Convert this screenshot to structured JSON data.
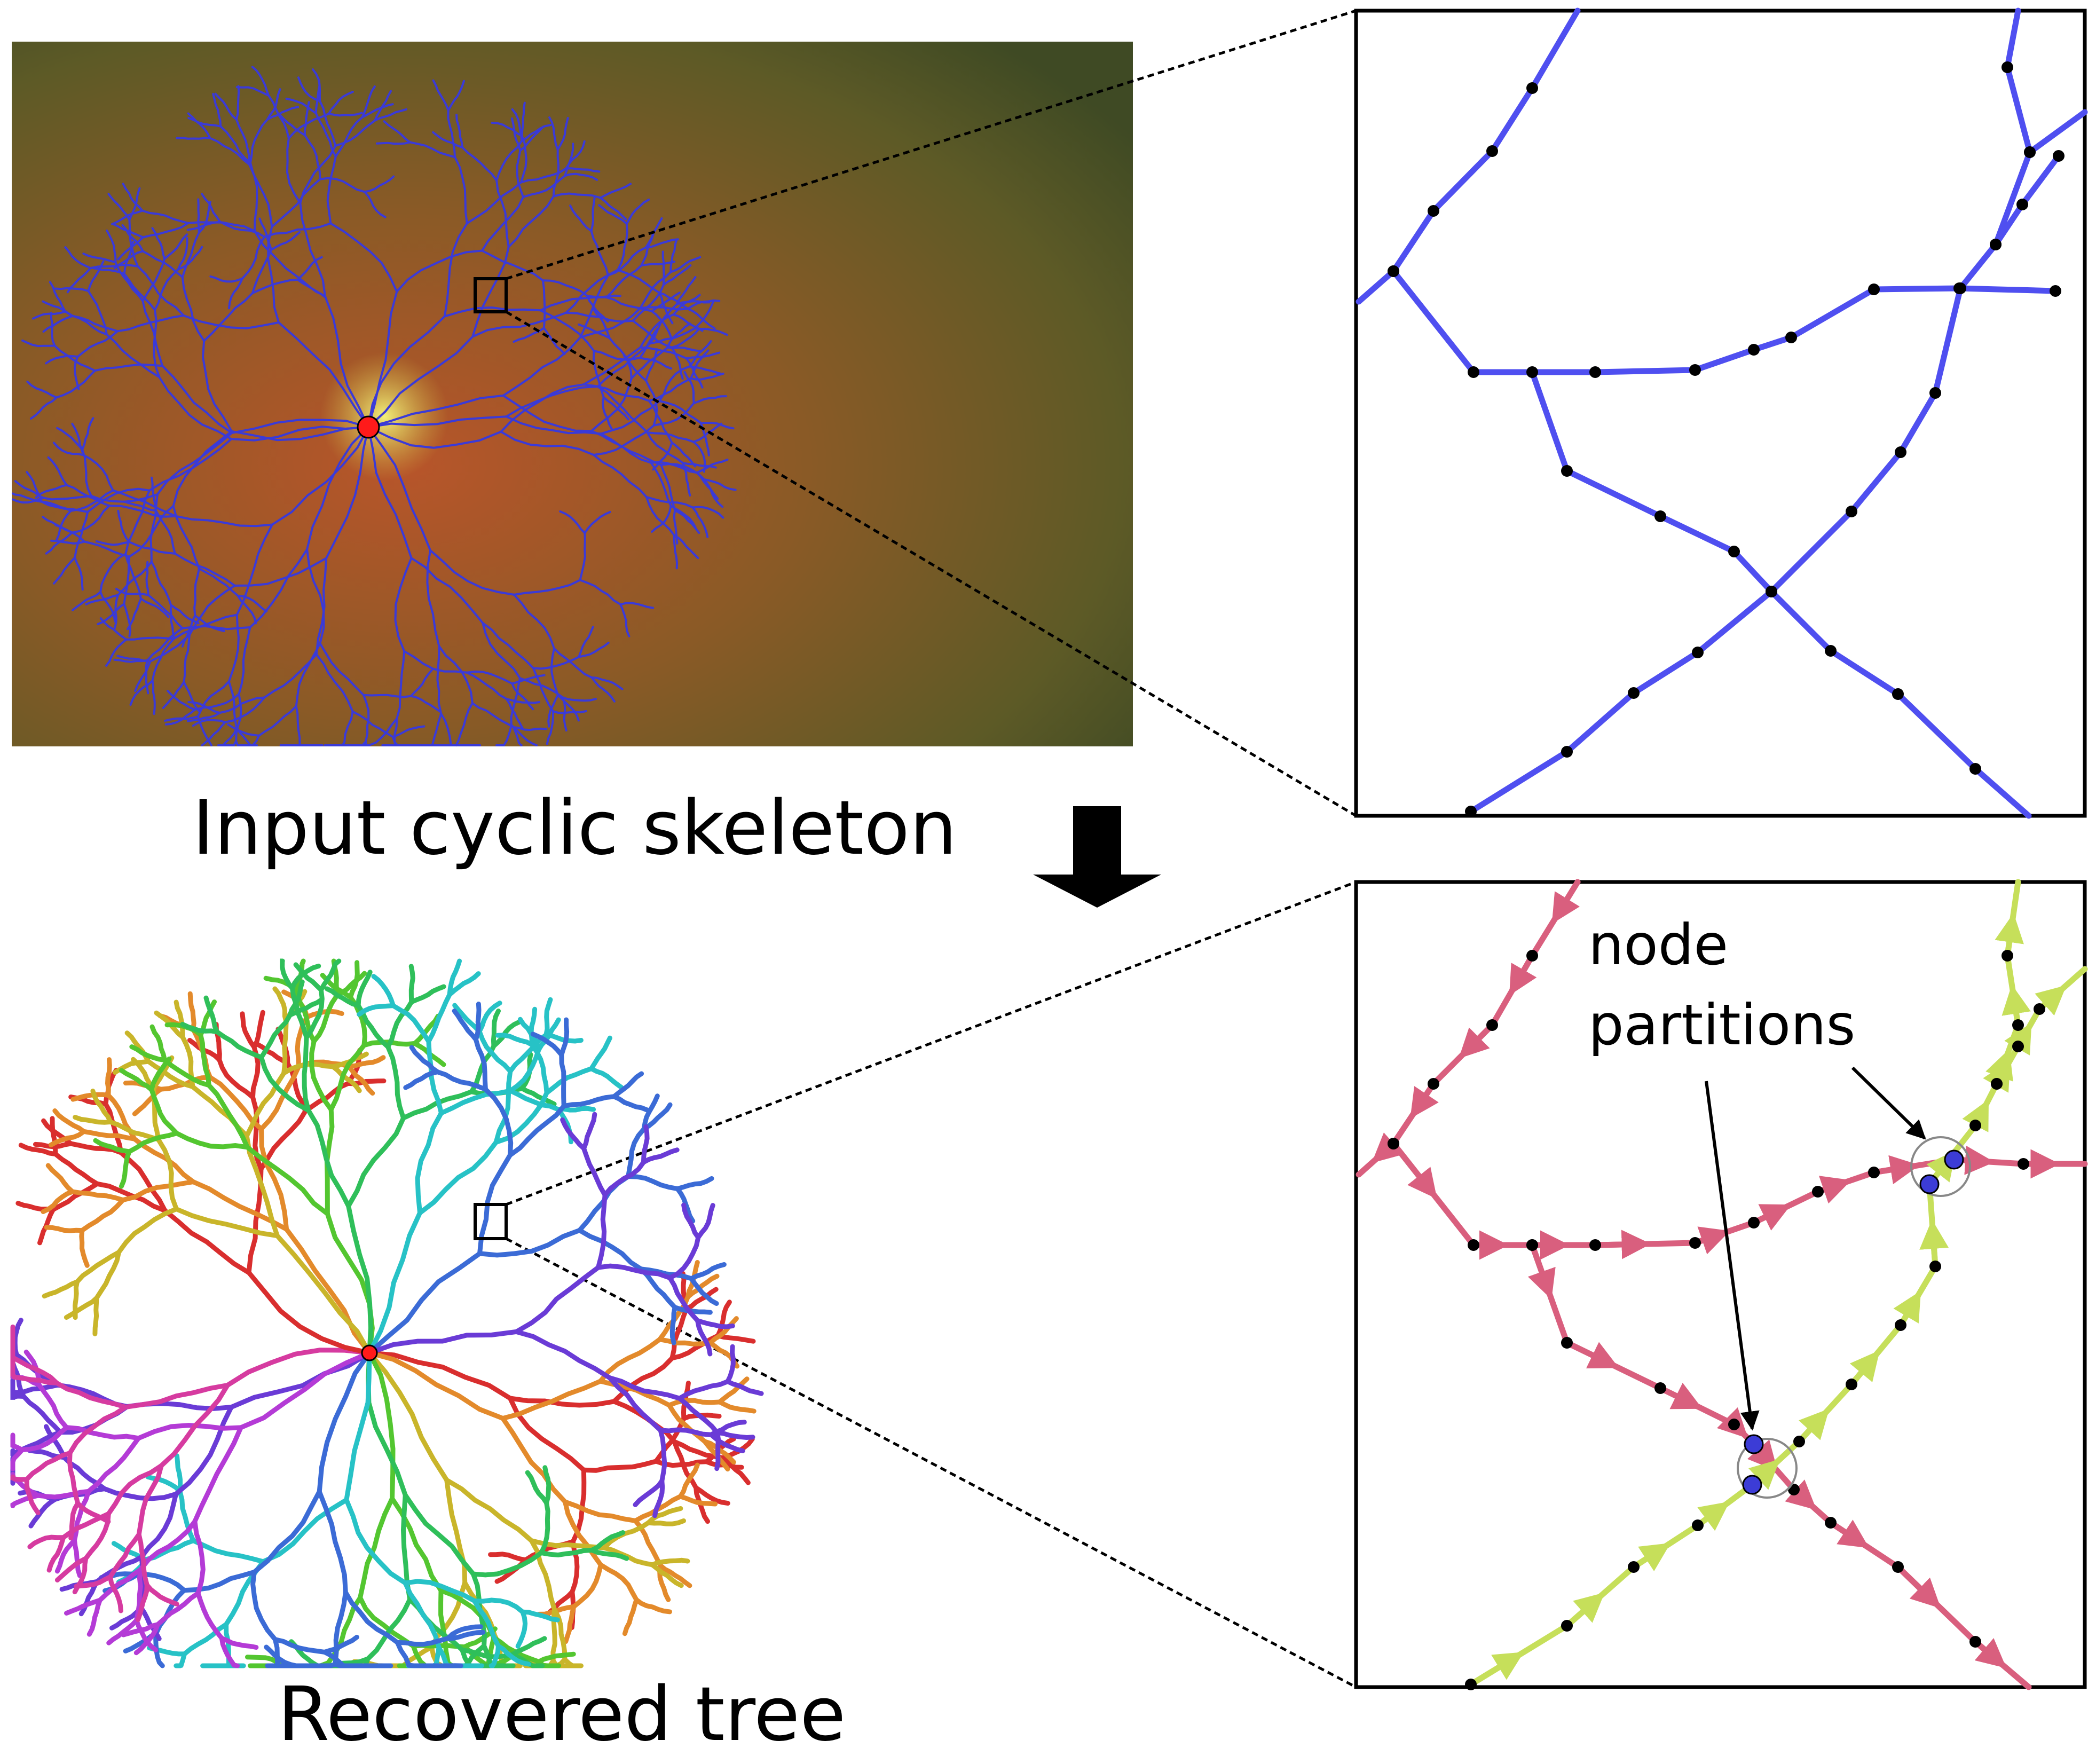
{
  "figure": {
    "top_caption": "Input cyclic skeleton",
    "bottom_caption": "Recovered tree",
    "annotation_line1": "node",
    "annotation_line2": "partitions"
  },
  "colors": {
    "skeleton_edge": "#4f4ff0",
    "tree_red_branch": "#d95f7e",
    "tree_green_branch": "#c6df5a",
    "node": "#000000",
    "partition_node": "#3c3cd6",
    "root_node": "#ff1a1a",
    "fundus_dark": "#3f4a24",
    "fundus_orange": "#b8552a"
  },
  "icons": {
    "process_arrow": "down-arrow-icon",
    "root_marker": "root-dot-icon"
  }
}
